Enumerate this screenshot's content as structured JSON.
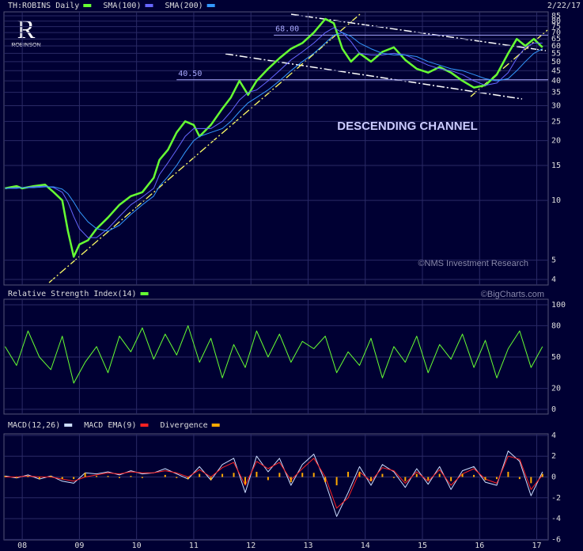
{
  "logo": {
    "letter": "R",
    "name": "ROBINSON"
  },
  "chart_data": [
    {
      "type": "line",
      "log_scale": true,
      "date": "2/22/17",
      "channel_label": "DESCENDING CHANNEL",
      "credit": "©NMS Investment Research",
      "levels": [
        {
          "value": 68,
          "label": "68.00",
          "from": 2012.4
        },
        {
          "value": 40.5,
          "label": "40.50",
          "from": 2010.7
        }
      ],
      "level_color": "#aaaaff",
      "x": [
        2007.7,
        2007.9,
        2008.0,
        2008.2,
        2008.4,
        2008.55,
        2008.7,
        2008.8,
        2008.9,
        2009.0,
        2009.15,
        2009.3,
        2009.5,
        2009.7,
        2009.9,
        2010.1,
        2010.3,
        2010.4,
        2010.55,
        2010.7,
        2010.85,
        2011.0,
        2011.1,
        2011.3,
        2011.5,
        2011.65,
        2011.8,
        2011.95,
        2012.1,
        2012.3,
        2012.5,
        2012.7,
        2012.9,
        2013.1,
        2013.3,
        2013.45,
        2013.6,
        2013.75,
        2013.9,
        2014.1,
        2014.3,
        2014.5,
        2014.7,
        2014.9,
        2015.1,
        2015.3,
        2015.5,
        2015.7,
        2015.9,
        2016.1,
        2016.3,
        2016.5,
        2016.65,
        2016.8,
        2016.95,
        2017.1
      ],
      "series": [
        {
          "name": "TH:ROBINS Daily",
          "color": "#66ff33",
          "width": 2.5,
          "values": [
            11.5,
            11.8,
            11.5,
            11.8,
            12,
            11,
            10,
            7,
            5.2,
            6,
            6.3,
            7.2,
            8.2,
            9.5,
            10.5,
            11,
            13,
            16,
            18,
            22,
            25,
            24,
            21,
            24,
            29,
            33,
            40,
            34,
            40,
            46,
            52,
            58,
            62,
            70,
            82,
            78,
            58,
            50,
            55,
            50,
            56,
            59,
            51,
            46,
            44,
            47,
            44,
            40,
            37,
            38,
            43,
            55,
            65,
            60,
            65,
            59
          ]
        },
        {
          "name": "SMA(100)",
          "color": "#6666ff",
          "width": 1,
          "values": [
            11.5,
            11.6,
            11.6,
            11.7,
            11.8,
            11.6,
            11.0,
            9.8,
            8.3,
            7.2,
            6.5,
            6.5,
            7.2,
            8.3,
            9.5,
            10.4,
            11.5,
            13.5,
            15.5,
            18,
            21,
            23,
            23,
            23,
            25,
            28,
            32,
            35,
            36,
            40,
            45,
            51,
            56,
            62,
            70,
            74,
            70,
            63,
            55,
            54,
            54,
            55,
            54,
            51,
            48,
            46,
            45,
            43,
            40,
            38,
            39,
            44,
            52,
            59,
            62,
            62
          ]
        },
        {
          "name": "SMA(200)",
          "color": "#3399ff",
          "width": 1,
          "values": [
            11.5,
            11.5,
            11.6,
            11.6,
            11.7,
            11.7,
            11.4,
            10.8,
            9.8,
            8.8,
            7.8,
            7.2,
            7.0,
            7.5,
            8.5,
            9.5,
            10.5,
            11.8,
            13.2,
            15,
            17.5,
            20,
            21,
            22,
            23,
            25,
            28,
            31,
            33,
            36,
            40,
            45,
            50,
            55,
            62,
            68,
            70,
            67,
            62,
            58,
            55,
            54,
            54,
            53,
            50,
            48,
            46,
            45,
            43,
            41,
            40,
            41,
            45,
            50,
            55,
            58
          ]
        }
      ],
      "xlim": [
        2007.68,
        2017.2
      ],
      "ylim": [
        3.75,
        89
      ],
      "yticks": [
        4,
        5,
        10,
        15,
        20,
        25,
        30,
        35,
        40,
        45,
        50,
        55,
        60,
        65,
        70,
        75,
        80,
        85
      ],
      "grid": true
    },
    {
      "type": "line",
      "credit": "©BigCharts.com",
      "x": [
        2007.7,
        2007.9,
        2008.1,
        2008.3,
        2008.5,
        2008.7,
        2008.9,
        2009.1,
        2009.3,
        2009.5,
        2009.7,
        2009.9,
        2010.1,
        2010.3,
        2010.5,
        2010.7,
        2010.9,
        2011.1,
        2011.3,
        2011.5,
        2011.7,
        2011.9,
        2012.1,
        2012.3,
        2012.5,
        2012.7,
        2012.9,
        2013.1,
        2013.3,
        2013.5,
        2013.7,
        2013.9,
        2014.1,
        2014.3,
        2014.5,
        2014.7,
        2014.9,
        2015.1,
        2015.3,
        2015.5,
        2015.7,
        2015.9,
        2016.1,
        2016.3,
        2016.5,
        2016.7,
        2016.9,
        2017.1
      ],
      "series": [
        {
          "name": "Relative Strength Index(14)",
          "color": "#66ff33",
          "width": 1,
          "values": [
            60,
            42,
            75,
            50,
            38,
            70,
            25,
            45,
            60,
            35,
            70,
            55,
            78,
            48,
            72,
            52,
            80,
            45,
            68,
            30,
            62,
            40,
            75,
            50,
            72,
            45,
            65,
            58,
            70,
            35,
            55,
            42,
            68,
            30,
            60,
            45,
            70,
            35,
            62,
            48,
            72,
            40,
            66,
            30,
            58,
            75,
            40,
            60
          ]
        }
      ],
      "xlim": [
        2007.68,
        2017.2
      ],
      "ylim": [
        -4.5,
        105.3
      ],
      "yticks": [
        0,
        20,
        50,
        80,
        100
      ],
      "grid": true
    },
    {
      "type": "line",
      "x": [
        2007.7,
        2007.9,
        2008.1,
        2008.3,
        2008.5,
        2008.7,
        2008.9,
        2009.1,
        2009.3,
        2009.5,
        2009.7,
        2009.9,
        2010.1,
        2010.3,
        2010.5,
        2010.7,
        2010.9,
        2011.1,
        2011.3,
        2011.5,
        2011.7,
        2011.9,
        2012.1,
        2012.3,
        2012.5,
        2012.7,
        2012.9,
        2013.1,
        2013.3,
        2013.5,
        2013.7,
        2013.9,
        2014.1,
        2014.3,
        2014.5,
        2014.7,
        2014.9,
        2015.1,
        2015.3,
        2015.5,
        2015.7,
        2015.9,
        2016.1,
        2016.3,
        2016.5,
        2016.7,
        2016.9,
        2017.1
      ],
      "series": [
        {
          "name": "MACD(12,26)",
          "color": "#ccddff",
          "width": 1,
          "values": [
            0.1,
            -0.1,
            0.2,
            -0.2,
            0.1,
            -0.4,
            -0.6,
            0.4,
            0.3,
            0.5,
            0.2,
            0.6,
            0.3,
            0.4,
            0.8,
            0.3,
            -0.2,
            1.0,
            -0.3,
            1.2,
            1.8,
            -1.5,
            2.0,
            0.5,
            1.8,
            -0.8,
            1.2,
            2.2,
            -0.5,
            -3.8,
            -1.5,
            1.0,
            -0.8,
            1.2,
            0.5,
            -1.0,
            0.8,
            -0.7,
            1.0,
            -1.2,
            0.6,
            1.0,
            -0.5,
            -0.8,
            2.5,
            1.5,
            -1.8,
            0.5
          ]
        },
        {
          "name": "MACD EMA(9)",
          "color": "#ff2222",
          "width": 1,
          "values": [
            0,
            0,
            0.1,
            0,
            0,
            -0.2,
            -0.4,
            0,
            0.2,
            0.4,
            0.3,
            0.5,
            0.4,
            0.4,
            0.6,
            0.4,
            0,
            0.7,
            0,
            0.9,
            1.4,
            -0.8,
            1.5,
            0.8,
            1.4,
            -0.3,
            0.8,
            1.8,
            0,
            -3.0,
            -2.0,
            0.5,
            -0.4,
            0.9,
            0.6,
            -0.6,
            0.5,
            -0.4,
            0.7,
            -0.8,
            0.3,
            0.8,
            -0.2,
            -0.6,
            2.0,
            1.7,
            -1.2,
            0.2
          ]
        },
        {
          "name": "Divergence",
          "color": "#ffaa00",
          "kind": "bar",
          "values": [
            0.1,
            -0.1,
            0.1,
            -0.2,
            0.1,
            -0.2,
            -0.2,
            0.4,
            0.1,
            0.1,
            -0.1,
            0.1,
            -0.1,
            0,
            0.2,
            -0.1,
            -0.2,
            0.3,
            -0.3,
            0.3,
            0.4,
            -0.7,
            0.5,
            -0.3,
            0.4,
            -0.5,
            0.4,
            0.4,
            -0.5,
            -0.8,
            0.5,
            0.5,
            -0.4,
            0.3,
            -0.1,
            -0.4,
            0.3,
            -0.3,
            0.3,
            -0.4,
            0.3,
            0.2,
            -0.3,
            -0.2,
            0.5,
            -0.2,
            -0.6,
            0.3
          ]
        }
      ],
      "xlim": [
        2007.68,
        2017.2
      ],
      "ylim": [
        -6.05,
        4.15
      ],
      "yticks": [
        -6,
        -4,
        -2,
        0,
        2,
        4
      ],
      "grid": true,
      "xticks": [
        {
          "value": 2008,
          "label": "08"
        },
        {
          "value": 2009,
          "label": "09"
        },
        {
          "value": 2010,
          "label": "10"
        },
        {
          "value": 2011,
          "label": "11"
        },
        {
          "value": 2012,
          "label": "12"
        },
        {
          "value": 2013,
          "label": "13"
        },
        {
          "value": 2014,
          "label": "14"
        },
        {
          "value": 2015,
          "label": "15"
        },
        {
          "value": 2016,
          "label": "16"
        },
        {
          "value": 2017,
          "label": "17"
        }
      ]
    }
  ]
}
